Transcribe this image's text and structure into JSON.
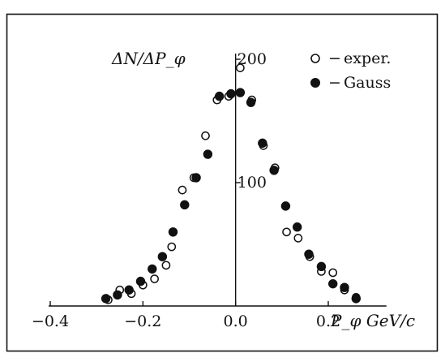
{
  "chart_data": {
    "type": "scatter",
    "title": "",
    "ylabel": "ΔN/ΔP_φ",
    "xlabel": "P_φ GeV/c",
    "xlim": [
      -0.4,
      0.35
    ],
    "ylim": [
      0,
      200
    ],
    "x_ticks": [
      -0.4,
      -0.2,
      0.0,
      0.2
    ],
    "x_tick_labels": [
      "−0.4",
      "−0.2",
      "0.0",
      "0.2"
    ],
    "y_ticks": [
      100,
      200
    ],
    "y_tick_labels": [
      "100",
      "200"
    ],
    "grid": false,
    "legend_position": "top-right",
    "series": [
      {
        "name": "exper.",
        "marker": "open-circle",
        "x": [
          -0.275,
          -0.25,
          -0.225,
          -0.2,
          -0.175,
          -0.15,
          -0.138,
          -0.115,
          -0.09,
          -0.065,
          -0.04,
          -0.015,
          0.01,
          0.035,
          0.06,
          0.085,
          0.11,
          0.135,
          0.16,
          0.185,
          0.21,
          0.235,
          0.26
        ],
        "y": [
          5,
          13,
          10,
          17,
          22,
          33,
          48,
          94,
          104,
          138,
          167,
          170,
          193,
          167,
          130,
          112,
          60,
          55,
          40,
          28,
          27,
          13,
          7
        ]
      },
      {
        "name": "Gauss",
        "marker": "filled-circle",
        "x": [
          -0.28,
          -0.255,
          -0.23,
          -0.205,
          -0.18,
          -0.158,
          -0.135,
          -0.11,
          -0.085,
          -0.06,
          -0.035,
          -0.01,
          0.01,
          0.033,
          0.058,
          0.083,
          0.108,
          0.133,
          0.158,
          0.185,
          0.21,
          0.235,
          0.26
        ],
        "y": [
          6,
          9,
          13,
          20,
          30,
          40,
          60,
          82,
          104,
          123,
          170,
          172,
          173,
          165,
          132,
          110,
          81,
          64,
          42,
          32,
          18,
          15,
          6
        ]
      }
    ]
  },
  "legend": {
    "items": [
      {
        "symbol": "○",
        "dash": "−",
        "label": "exper."
      },
      {
        "symbol": "●",
        "dash": "−",
        "label": "Gauss"
      }
    ]
  },
  "colors": {
    "ink": "#111111",
    "background": "#ffffff"
  }
}
